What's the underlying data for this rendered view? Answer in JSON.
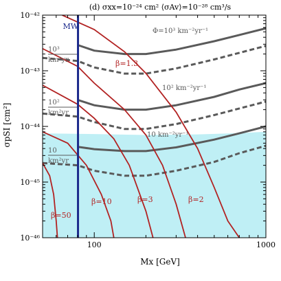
{
  "chart_data": {
    "type": "line",
    "title": "(d) σxx=10⁻²⁴ cm²  ⟨σAv⟩=10⁻²⁸ cm³/s",
    "xlabel": "Mx [GeV]",
    "ylabel": "σpSI [cm²]",
    "xscale": "log",
    "yscale": "log",
    "xlim": [
      50,
      1000
    ],
    "ylim": [
      1e-46,
      1e-42
    ],
    "x_ticklabels": [
      "100",
      "1000"
    ],
    "y_ticklabels": [
      "10⁻⁴⁶",
      "10⁻⁴⁵",
      "10⁻⁴⁴",
      "10⁻⁴³",
      "10⁻⁴²"
    ],
    "mw_label": "MW",
    "mw_x": 80.4,
    "excluded_region": {
      "color": "#bfeff5",
      "upper_boundary": [
        [
          50,
          7.5e-45
        ],
        [
          100,
          7.3e-45
        ],
        [
          200,
          7e-45
        ],
        [
          400,
          7.2e-45
        ],
        [
          700,
          7.6e-45
        ],
        [
          1000,
          8e-45
        ]
      ]
    },
    "flux_series": [
      {
        "name": "Φ=10³ km⁻²yr⁻¹",
        "style": "solid",
        "points": [
          [
            80,
            2.9e-43
          ],
          [
            100,
            2.3e-43
          ],
          [
            150,
            2e-43
          ],
          [
            200,
            2e-43
          ],
          [
            300,
            2.4e-43
          ],
          [
            500,
            3.4e-43
          ],
          [
            700,
            4.4e-43
          ],
          [
            1000,
            5.8e-43
          ]
        ]
      },
      {
        "name": "10³ km²yr",
        "style": "dashed",
        "points": [
          [
            50,
            1.7e-43
          ],
          [
            80,
            1.5e-43
          ],
          [
            100,
            1.15e-43
          ],
          [
            150,
            8.9e-44
          ],
          [
            200,
            8.9e-44
          ],
          [
            300,
            1.1e-43
          ],
          [
            500,
            1.6e-43
          ],
          [
            700,
            2.1e-43
          ],
          [
            1000,
            2.8e-43
          ]
        ]
      },
      {
        "name": "10² km⁻²yr⁻¹",
        "style": "solid",
        "points": [
          [
            80,
            3e-44
          ],
          [
            100,
            2.4e-44
          ],
          [
            150,
            2e-44
          ],
          [
            200,
            2e-44
          ],
          [
            300,
            2.4e-44
          ],
          [
            500,
            3.4e-44
          ],
          [
            700,
            4.6e-44
          ],
          [
            1000,
            6e-44
          ]
        ]
      },
      {
        "name": "10² km²yr",
        "style": "dashed",
        "points": [
          [
            50,
            1.7e-44
          ],
          [
            80,
            1.5e-44
          ],
          [
            100,
            1.2e-44
          ],
          [
            150,
            9e-45
          ],
          [
            200,
            9e-45
          ],
          [
            300,
            1.1e-44
          ],
          [
            500,
            1.6e-44
          ],
          [
            700,
            2.1e-44
          ],
          [
            1000,
            2.8e-44
          ]
        ]
      },
      {
        "name": "10 km⁻²yr⁻¹",
        "style": "solid",
        "points": [
          [
            80,
            4.3e-45
          ],
          [
            100,
            3.9e-45
          ],
          [
            150,
            3.6e-45
          ],
          [
            200,
            3.6e-45
          ],
          [
            300,
            4.2e-45
          ],
          [
            500,
            5.8e-45
          ],
          [
            700,
            7.5e-45
          ],
          [
            1000,
            1e-44
          ]
        ]
      },
      {
        "name": "10 km²yr",
        "style": "dashed",
        "points": [
          [
            50,
            2.2e-45
          ],
          [
            80,
            2e-45
          ],
          [
            100,
            1.6e-45
          ],
          [
            150,
            1.3e-45
          ],
          [
            200,
            1.3e-45
          ],
          [
            300,
            1.6e-45
          ],
          [
            500,
            2.3e-45
          ],
          [
            700,
            3.3e-45
          ],
          [
            1000,
            4.5e-45
          ]
        ]
      }
    ],
    "beta_series": [
      {
        "name": "β=1.3",
        "points": [
          [
            65,
            1e-42
          ],
          [
            100,
            5.5e-43
          ],
          [
            150,
            2.2e-43
          ],
          [
            200,
            9e-44
          ],
          [
            300,
            1.8e-44
          ],
          [
            400,
            4e-45
          ],
          [
            500,
            8e-46
          ],
          [
            600,
            2e-46
          ],
          [
            700,
            1e-46
          ]
        ]
      },
      {
        "name": "β=2",
        "points": [
          [
            50,
            2.5e-43
          ],
          [
            80,
            1.2e-43
          ],
          [
            100,
            6e-44
          ],
          [
            150,
            2e-44
          ],
          [
            200,
            7e-45
          ],
          [
            250,
            2e-45
          ],
          [
            300,
            4e-46
          ],
          [
            340,
            1e-46
          ]
        ]
      },
      {
        "name": "β=3",
        "points": [
          [
            50,
            5.5e-44
          ],
          [
            80,
            2.5e-44
          ],
          [
            100,
            1.4e-44
          ],
          [
            130,
            6e-45
          ],
          [
            160,
            2e-45
          ],
          [
            200,
            3e-46
          ],
          [
            220,
            1e-46
          ]
        ]
      },
      {
        "name": "β=10",
        "points": [
          [
            50,
            8e-45
          ],
          [
            70,
            5e-45
          ],
          [
            90,
            2e-45
          ],
          [
            110,
            6e-46
          ],
          [
            125,
            2e-46
          ],
          [
            130,
            1e-46
          ]
        ]
      },
      {
        "name": "β=50",
        "points": [
          [
            50,
            2.2e-45
          ],
          [
            55,
            1.3e-45
          ],
          [
            58,
            6e-46
          ],
          [
            60,
            2e-46
          ],
          [
            61,
            1e-46
          ]
        ]
      }
    ],
    "series_labels": [
      {
        "text": "Φ=10³ km⁻²yr⁻¹",
        "color": "#555555",
        "pos": "upper right"
      },
      {
        "text": "10² km⁻²yr⁻¹",
        "color": "#555555",
        "pos": "middle right"
      },
      {
        "text": "10 km⁻²yr⁻¹",
        "color": "#555555",
        "pos": "lower middle"
      },
      {
        "text": "β=1.3",
        "color": "#b22222",
        "pos": "upper middle"
      },
      {
        "text": "β=2",
        "color": "#b22222",
        "pos": "bottom"
      },
      {
        "text": "β=3",
        "color": "#b22222",
        "pos": "bottom"
      },
      {
        "text": "β=10",
        "color": "#b22222",
        "pos": "bottom"
      },
      {
        "text": "β=50",
        "color": "#b22222",
        "pos": "bottom left"
      }
    ],
    "colors": {
      "flux": "#5a5a5a",
      "beta": "#b22222",
      "mw": "#1c2a8c",
      "axis": "#000000"
    }
  }
}
